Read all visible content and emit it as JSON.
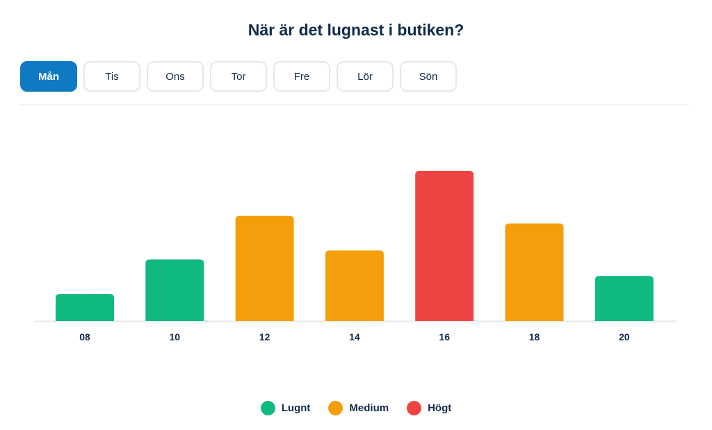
{
  "title": "När är det lugnast i butiken?",
  "tabs": [
    {
      "label": "Mån",
      "active": true
    },
    {
      "label": "Tis"
    },
    {
      "label": "Ons"
    },
    {
      "label": "Tor"
    },
    {
      "label": "Fre"
    },
    {
      "label": "Lör"
    },
    {
      "label": "Sön"
    }
  ],
  "legend": [
    {
      "label": "Lugnt",
      "color": "#10b981"
    },
    {
      "label": "Medium",
      "color": "#f59e0b"
    },
    {
      "label": "Högt",
      "color": "#ef4444"
    }
  ],
  "chart_data": {
    "type": "bar",
    "categories": [
      "08",
      "10",
      "12",
      "14",
      "16",
      "18",
      "20"
    ],
    "values": [
      18,
      41,
      70,
      47,
      100,
      65,
      30
    ],
    "levels": [
      "Lugnt",
      "Lugnt",
      "Medium",
      "Medium",
      "Högt",
      "Medium",
      "Lugnt"
    ],
    "ylim": [
      0,
      100
    ],
    "grid": false,
    "legend_position": "bottom"
  }
}
